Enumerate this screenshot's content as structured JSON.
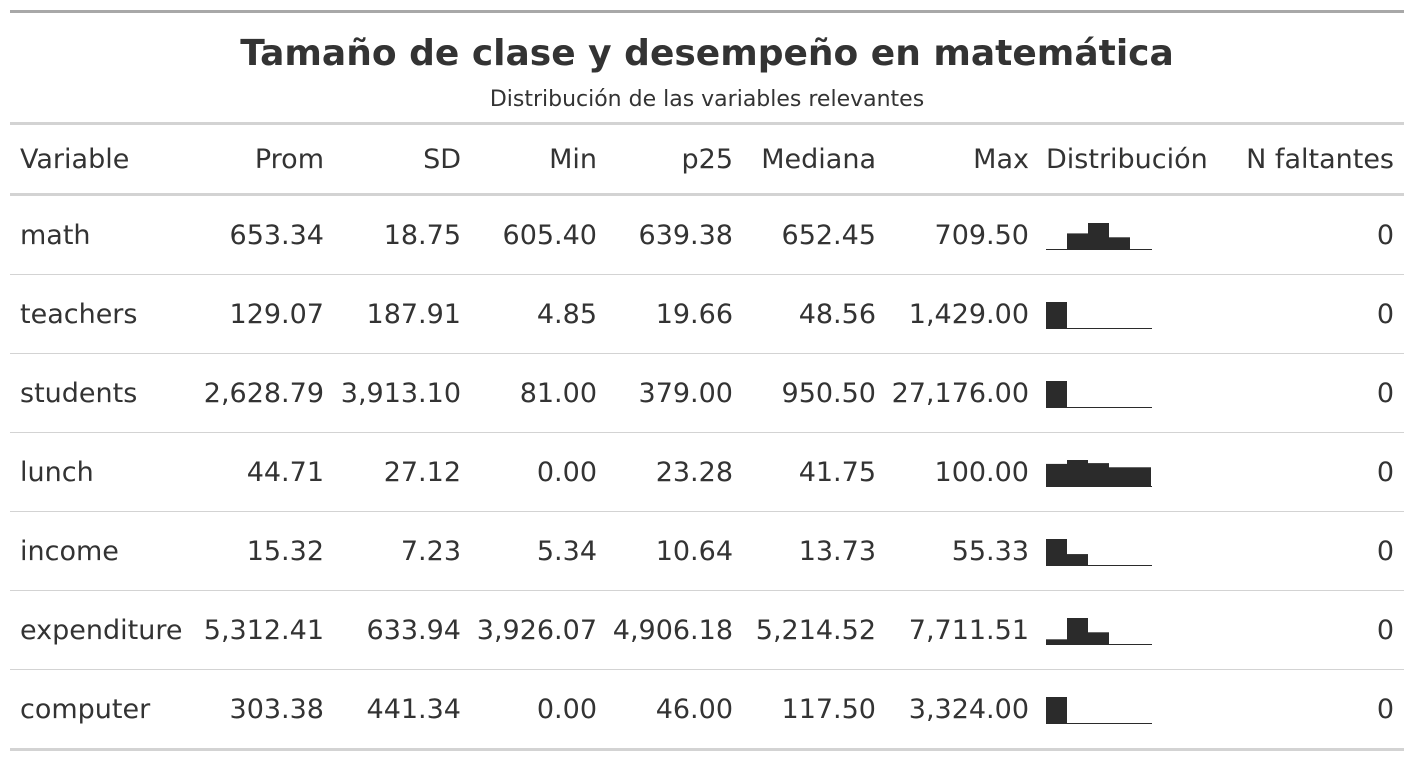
{
  "title": "Tamaño de clase y desempeño en matemática",
  "subtitle": "Distribución de las variables relevantes",
  "columns": {
    "variable": "Variable",
    "mean": "Prom",
    "sd": "SD",
    "min": "Min",
    "p25": "p25",
    "median": "Mediana",
    "max": "Max",
    "distribution": "Distribución",
    "missing": "N faltantes"
  },
  "rows": [
    {
      "variable": "math",
      "mean": "653.34",
      "sd": "18.75",
      "min": "605.40",
      "p25": "639.38",
      "median": "652.45",
      "max": "709.50",
      "missing": "0",
      "histogram": [
        0,
        0.6,
        1,
        0.45,
        0,
        0
      ]
    },
    {
      "variable": "teachers",
      "mean": "129.07",
      "sd": "187.91",
      "min": "4.85",
      "p25": "19.66",
      "median": "48.56",
      "max": "1,429.00",
      "missing": "0",
      "histogram": [
        1,
        0,
        0,
        0,
        0
      ]
    },
    {
      "variable": "students",
      "mean": "2,628.79",
      "sd": "3,913.10",
      "min": "81.00",
      "p25": "379.00",
      "median": "950.50",
      "max": "27,176.00",
      "missing": "0",
      "histogram": [
        1,
        0,
        0,
        0,
        0
      ]
    },
    {
      "variable": "lunch",
      "mean": "44.71",
      "sd": "27.12",
      "min": "0.00",
      "p25": "23.28",
      "median": "41.75",
      "max": "100.00",
      "missing": "0",
      "histogram": [
        0.85,
        1,
        0.88,
        0.72,
        0.72
      ]
    },
    {
      "variable": "income",
      "mean": "15.32",
      "sd": "7.23",
      "min": "5.34",
      "p25": "10.64",
      "median": "13.73",
      "max": "55.33",
      "missing": "0",
      "histogram": [
        1,
        0.42,
        0,
        0,
        0
      ]
    },
    {
      "variable": "expenditure",
      "mean": "5,312.41",
      "sd": "633.94",
      "min": "3,926.07",
      "p25": "4,906.18",
      "median": "5,214.52",
      "max": "7,711.51",
      "missing": "0",
      "histogram": [
        0.18,
        1,
        0.45,
        0,
        0
      ]
    },
    {
      "variable": "computer",
      "mean": "303.38",
      "sd": "441.34",
      "min": "0.00",
      "p25": "46.00",
      "median": "117.50",
      "max": "3,324.00",
      "missing": "0",
      "histogram": [
        1,
        0,
        0,
        0,
        0
      ]
    }
  ],
  "colors": {
    "text": "#333333",
    "bar": "#2b2b2b",
    "rule": "#d3d3d3",
    "top_rule": "#a8a8a8"
  }
}
